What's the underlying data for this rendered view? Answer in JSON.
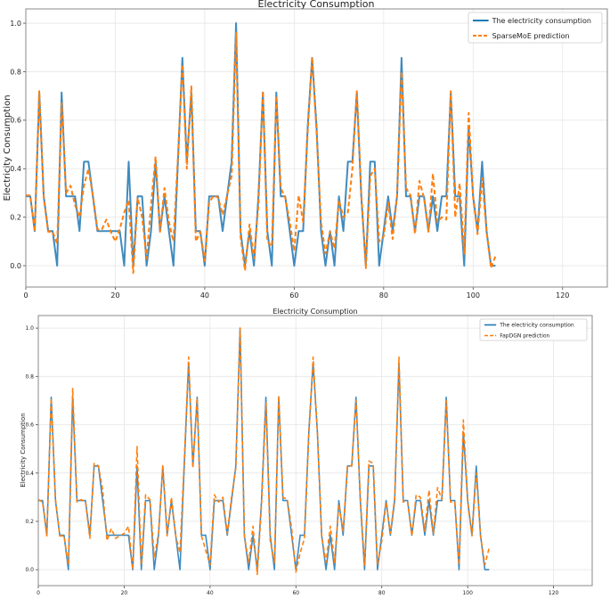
{
  "chart_data": [
    {
      "type": "line",
      "title": "Electricity Consumption",
      "xlabel": "",
      "ylabel": "Electricity Consumption",
      "xlim": [
        0,
        130
      ],
      "ylim": [
        -0.088,
        1.059
      ],
      "xticks": [
        "0",
        "20",
        "40",
        "60",
        "80",
        "100",
        "120"
      ],
      "yticks": [
        "0.0",
        "0.2",
        "0.4",
        "0.6",
        "0.8",
        "1.0"
      ],
      "grid": true,
      "legend_position": "top-right",
      "series": [
        {
          "name": "The electricity consumption",
          "color": "#1f77b4",
          "style": "solid",
          "values": [
            0.286,
            0.286,
            0.143,
            0.714,
            0.286,
            0.143,
            0.143,
            0,
            0.714,
            0.286,
            0.286,
            0.286,
            0.143,
            0.429,
            0.429,
            0.286,
            0.143,
            0.143,
            0.143,
            0.143,
            0.143,
            0.143,
            0,
            0.429,
            0,
            0.286,
            0.286,
            0,
            0.143,
            0.429,
            0.143,
            0.286,
            0.143,
            0,
            0.429,
            0.857,
            0.429,
            0.714,
            0.143,
            0.143,
            0,
            0.286,
            0.286,
            0.286,
            0.143,
            0.286,
            0.429,
            1.0,
            0.143,
            0,
            0.143,
            0,
            0.286,
            0.714,
            0.143,
            0,
            0.714,
            0.286,
            0.286,
            0.143,
            0,
            0.143,
            0.143,
            0.571,
            0.857,
            0.571,
            0.143,
            0,
            0.143,
            0,
            0.286,
            0.143,
            0.429,
            0.429,
            0.714,
            0.286,
            0,
            0.429,
            0.429,
            0,
            0.143,
            0.286,
            0.143,
            0.286,
            0.857,
            0.286,
            0.286,
            0.143,
            0.286,
            0.286,
            0.143,
            0.286,
            0.143,
            0.286,
            0.286,
            0.714,
            0.286,
            0.286,
            0,
            0.571,
            0.286,
            0.143,
            0.429,
            0.143,
            0,
            0
          ]
        },
        {
          "name": "SparseMoE prediction",
          "color": "#ff7f0e",
          "style": "dashed",
          "values": [
            0.29,
            0.29,
            0.14,
            0.72,
            0.28,
            0.14,
            0.14,
            0.09,
            0.67,
            0.3,
            0.33,
            0.25,
            0.2,
            0.33,
            0.4,
            0.29,
            0.15,
            0.15,
            0.19,
            0.14,
            0.1,
            0.15,
            0.22,
            0.27,
            -0.03,
            0.28,
            0.2,
            0.03,
            0.25,
            0.45,
            0.14,
            0.32,
            0.18,
            0.1,
            0.45,
            0.83,
            0.4,
            0.74,
            0.1,
            0.14,
            0.02,
            0.26,
            0.29,
            0.28,
            0.21,
            0.29,
            0.37,
            0.96,
            0.12,
            -0.02,
            0.17,
            0.03,
            0.25,
            0.72,
            0.1,
            0.08,
            0.7,
            0.32,
            0.28,
            0.18,
            0.06,
            0.29,
            0.18,
            0.55,
            0.86,
            0.55,
            0.18,
            0.05,
            0.14,
            0.07,
            0.27,
            0.2,
            0.22,
            0.4,
            0.72,
            0.3,
            -0.01,
            0.37,
            0.4,
            0.1,
            0.12,
            0.26,
            0.11,
            0.29,
            0.8,
            0.32,
            0.29,
            0.13,
            0.35,
            0.28,
            0.14,
            0.38,
            0.18,
            0.2,
            0.19,
            0.72,
            0.2,
            0.34,
            0.05,
            0.63,
            0.28,
            0.13,
            0.36,
            0.14,
            -0.01,
            0.04
          ]
        }
      ]
    },
    {
      "type": "line",
      "title": "Electricity Consumption",
      "xlabel": "",
      "ylabel": "Electricity Consumption",
      "xlim": [
        0,
        129
      ],
      "ylim": [
        -0.066,
        1.052
      ],
      "xticks": [
        "0",
        "20",
        "40",
        "60",
        "80",
        "100",
        "120"
      ],
      "yticks": [
        "0.0",
        "0.2",
        "0.4",
        "0.6",
        "0.8",
        "1.0"
      ],
      "grid": true,
      "legend_position": "top-right",
      "series": [
        {
          "name": "The electricity consumption",
          "color": "#1f77b4",
          "style": "solid",
          "values": [
            0.286,
            0.286,
            0.143,
            0.714,
            0.286,
            0.143,
            0.143,
            0,
            0.714,
            0.286,
            0.286,
            0.286,
            0.143,
            0.429,
            0.429,
            0.286,
            0.143,
            0.143,
            0.143,
            0.143,
            0.143,
            0.143,
            0,
            0.429,
            0,
            0.286,
            0.286,
            0,
            0.143,
            0.429,
            0.143,
            0.286,
            0.143,
            0,
            0.429,
            0.857,
            0.429,
            0.714,
            0.143,
            0.143,
            0,
            0.286,
            0.286,
            0.286,
            0.143,
            0.286,
            0.429,
            1.0,
            0.143,
            0,
            0.143,
            0,
            0.286,
            0.714,
            0.143,
            0,
            0.714,
            0.286,
            0.286,
            0.143,
            0,
            0.143,
            0.143,
            0.571,
            0.857,
            0.571,
            0.143,
            0,
            0.143,
            0,
            0.286,
            0.143,
            0.429,
            0.429,
            0.714,
            0.286,
            0,
            0.429,
            0.429,
            0,
            0.143,
            0.286,
            0.143,
            0.286,
            0.857,
            0.286,
            0.286,
            0.143,
            0.286,
            0.286,
            0.143,
            0.286,
            0.143,
            0.286,
            0.286,
            0.714,
            0.286,
            0.286,
            0,
            0.571,
            0.286,
            0.143,
            0.429,
            0.143,
            0,
            0
          ]
        },
        {
          "name": "FapDGN prediction",
          "color": "#ff7f0e",
          "style": "dashed",
          "values": [
            0.29,
            0.28,
            0.14,
            0.71,
            0.29,
            0.14,
            0.14,
            0.02,
            0.75,
            0.28,
            0.29,
            0.28,
            0.13,
            0.44,
            0.43,
            0.33,
            0.12,
            0.17,
            0.13,
            0.14,
            0.15,
            0.18,
            0.0,
            0.51,
            0.02,
            0.31,
            0.29,
            0.05,
            0.15,
            0.43,
            0.14,
            0.3,
            0.14,
            0.07,
            0.45,
            0.88,
            0.42,
            0.71,
            0.14,
            0.08,
            0.02,
            0.31,
            0.28,
            0.3,
            0.15,
            0.3,
            0.42,
            1.0,
            0.14,
            0.03,
            0.18,
            -0.02,
            0.27,
            0.69,
            0.12,
            0.03,
            0.72,
            0.3,
            0.29,
            0.17,
            -0.01,
            0.07,
            0.13,
            0.56,
            0.88,
            0.57,
            0.14,
            0.03,
            0.18,
            0.03,
            0.27,
            0.16,
            0.43,
            0.43,
            0.7,
            0.3,
            0.02,
            0.45,
            0.44,
            0.02,
            0.12,
            0.28,
            0.15,
            0.3,
            0.88,
            0.28,
            0.28,
            0.14,
            0.31,
            0.3,
            0.16,
            0.33,
            0.15,
            0.34,
            0.29,
            0.7,
            0.28,
            0.28,
            0.02,
            0.62,
            0.28,
            0.14,
            0.4,
            0.14,
            0.02,
            0.09
          ]
        }
      ]
    }
  ]
}
